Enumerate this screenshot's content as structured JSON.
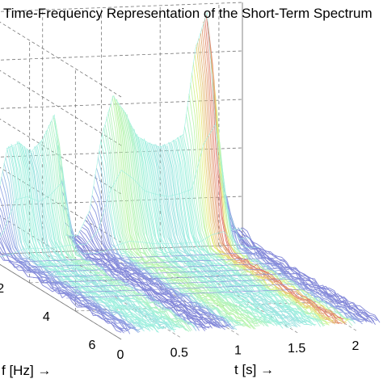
{
  "chart_data": {
    "type": "surface3d",
    "title": "Time-Frequency Representation of the Short-Term Spectrum",
    "xlabel": "t [s] →",
    "ylabel": "f [Hz] →",
    "zlabel": "",
    "x_ticks": [
      "0",
      "0.5",
      "1",
      "1.5",
      "2"
    ],
    "y_ticks": [
      "2",
      "4",
      "6"
    ],
    "x_range": [
      0,
      2.2
    ],
    "y_range": [
      0,
      6
    ],
    "z_range": [
      0,
      1
    ],
    "grid": true,
    "colormap": "jet",
    "series": [
      {
        "x": [
          0.0,
          0.1,
          0.2,
          0.3,
          0.4,
          0.5,
          0.6,
          0.7,
          0.8,
          0.9,
          1.0,
          1.1,
          1.2,
          1.3,
          1.4,
          1.5,
          1.6,
          1.7,
          1.8,
          1.9,
          2.0,
          2.1
        ],
        "envelope_low_f": [
          0.05,
          0.18,
          0.42,
          0.44,
          0.4,
          0.45,
          0.55,
          0.05,
          0.05,
          0.15,
          0.45,
          0.62,
          0.55,
          0.45,
          0.42,
          0.4,
          0.42,
          0.45,
          0.8,
          0.95,
          0.3,
          0.05
        ]
      }
    ]
  },
  "colors": {
    "low": "#7f7fd5",
    "mid": "#9ff0e0",
    "high": "#e8f07a",
    "peak": "#e07070",
    "grid": "#777777"
  }
}
